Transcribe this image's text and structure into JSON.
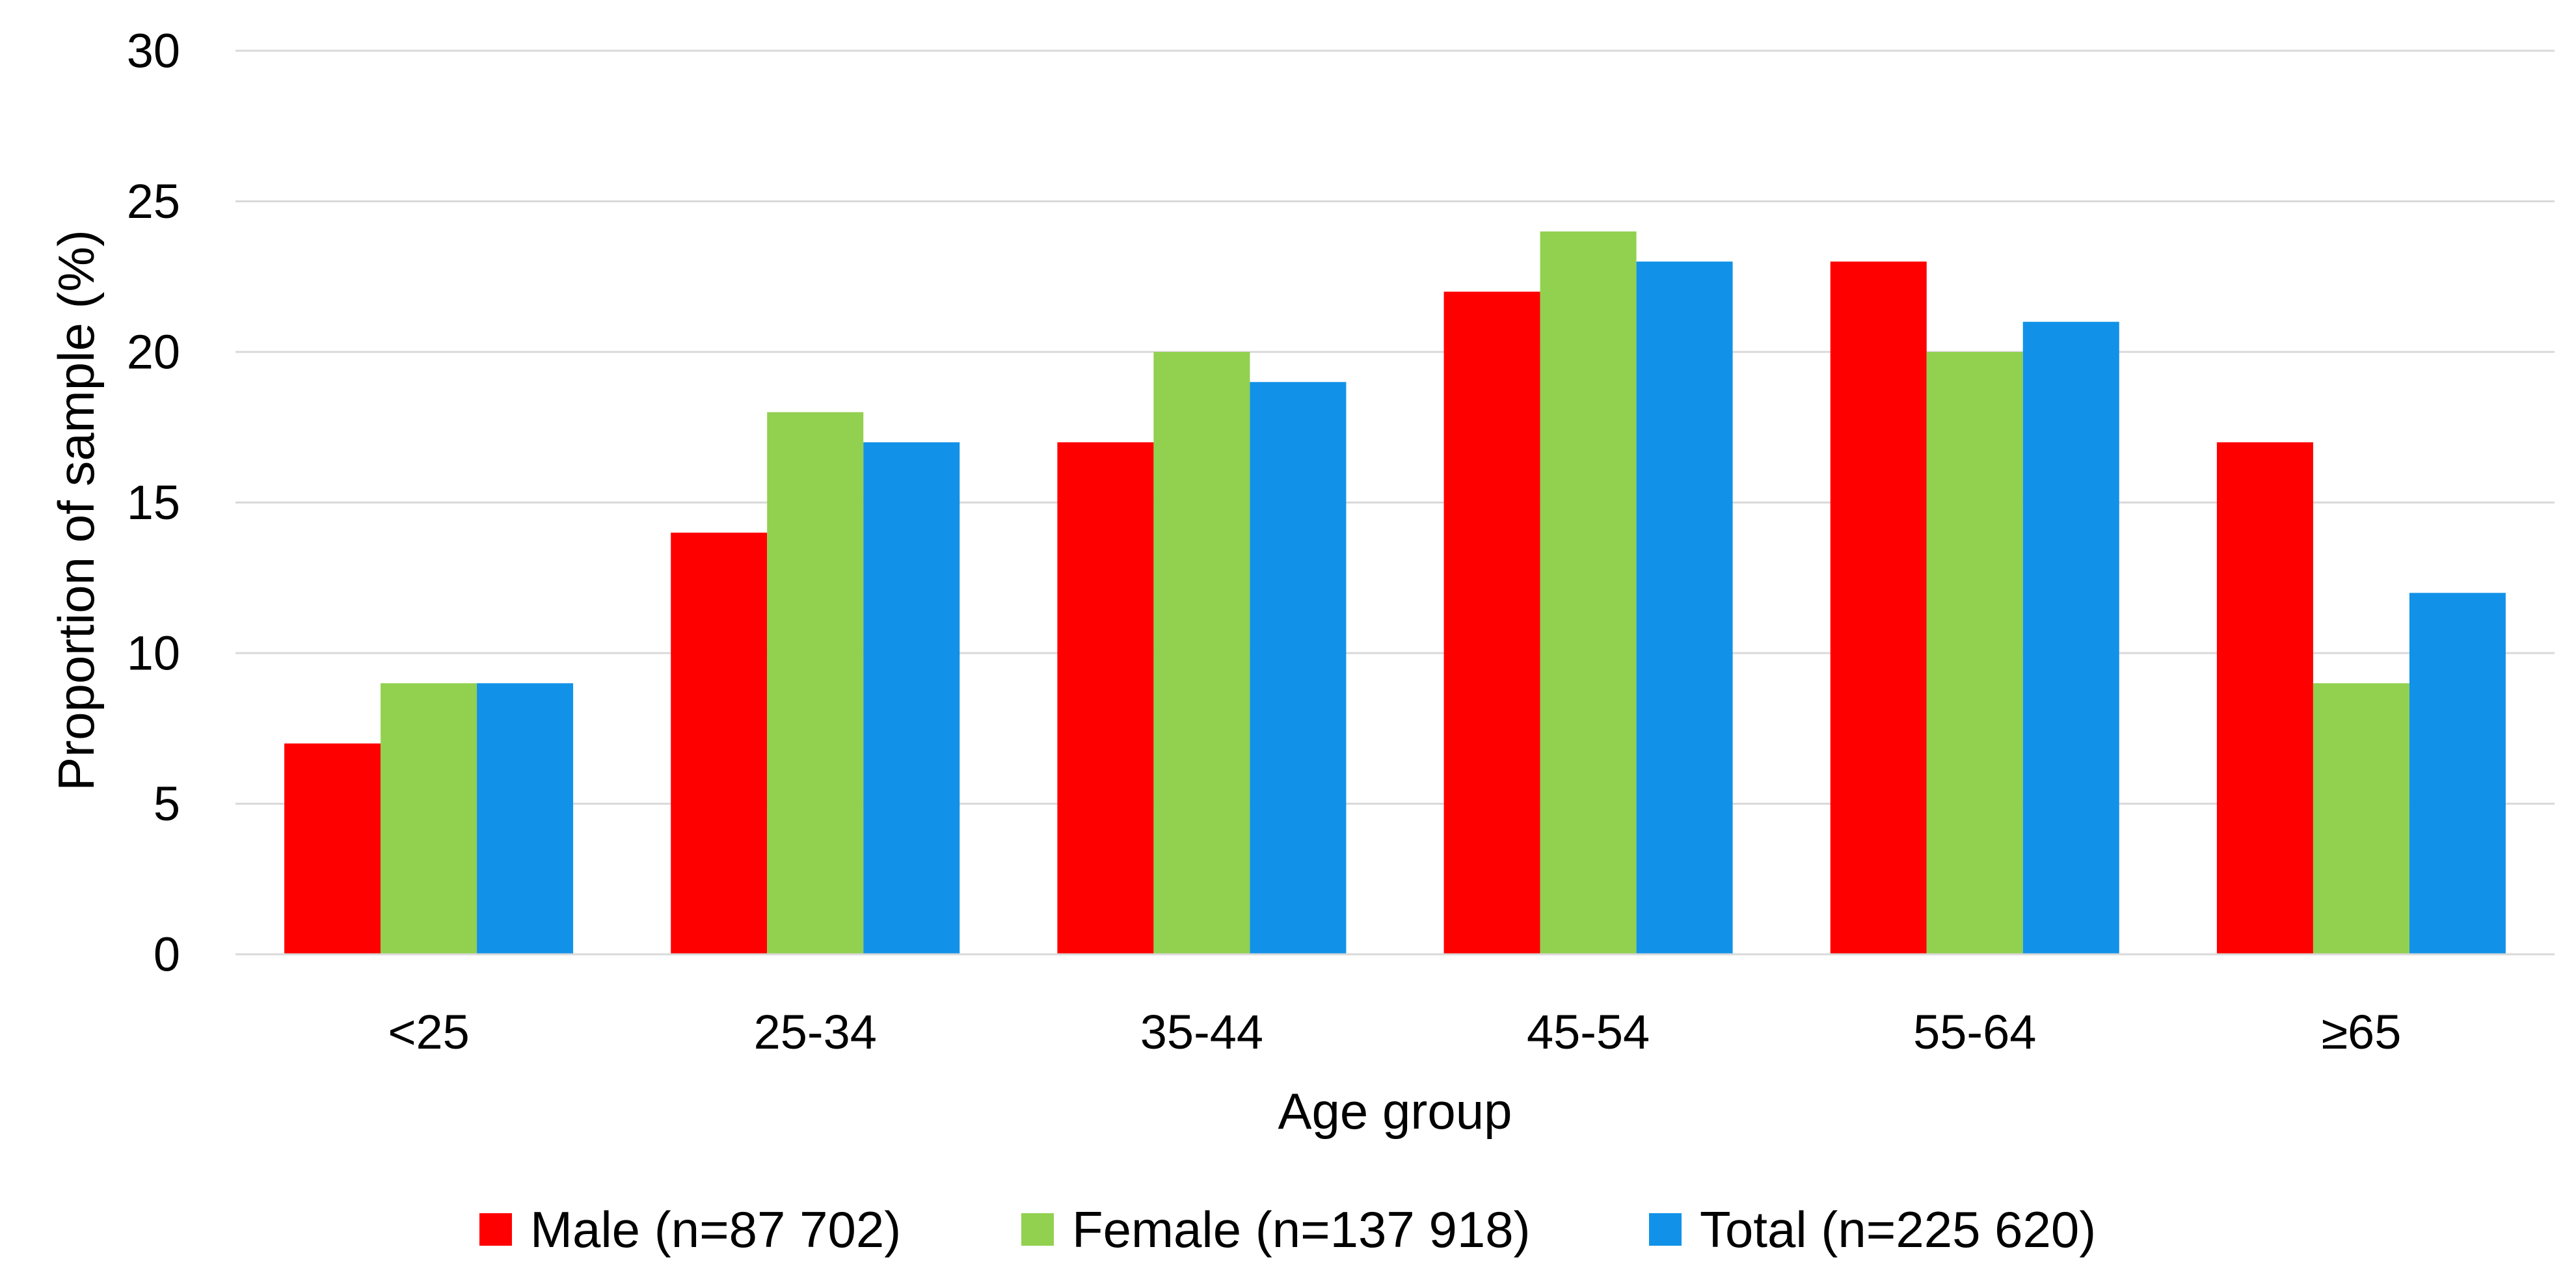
{
  "chart_data": {
    "type": "bar",
    "title": "",
    "xlabel": "Age group",
    "ylabel": "Proportion of sample (%)",
    "ylim": [
      0,
      30
    ],
    "yticks": [
      "0",
      "5",
      "10",
      "15",
      "20",
      "25",
      "30"
    ],
    "grid": true,
    "legend_position": "bottom",
    "categories": [
      "<25",
      "25-34",
      "35-44",
      "45-54",
      "55-64",
      "≥65"
    ],
    "series": [
      {
        "name": "Male (n=87 702)",
        "color": "#FF0000",
        "values": [
          7,
          14,
          17,
          22,
          23,
          17
        ]
      },
      {
        "name": "Female (n=137 918)",
        "color": "#92D050",
        "values": [
          9,
          18,
          20,
          24,
          20,
          9
        ]
      },
      {
        "name": "Total (n=225 620)",
        "color": "#1192E8",
        "values": [
          9,
          17,
          19,
          23,
          21,
          12
        ]
      }
    ]
  }
}
